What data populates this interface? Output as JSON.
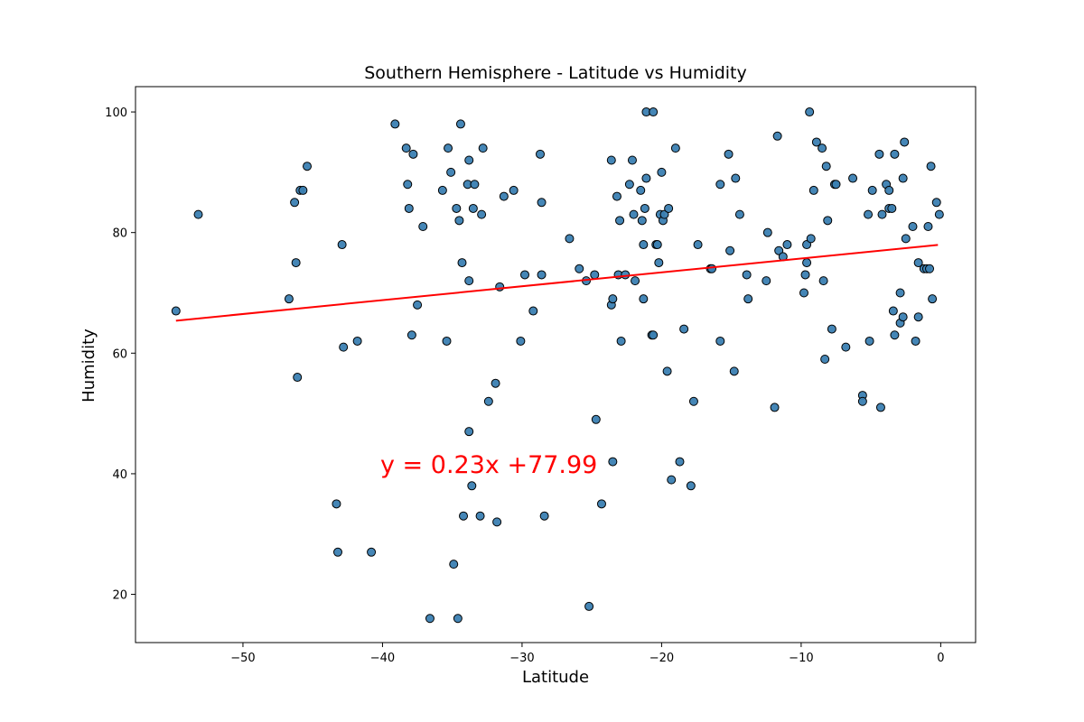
{
  "chart_data": {
    "type": "scatter",
    "title": "Southern Hemisphere - Latitude vs Humidity",
    "xlabel": "Latitude",
    "ylabel": "Humidity",
    "xlim": [
      -57.7,
      2.5
    ],
    "ylim": [
      12.0,
      104.2
    ],
    "xticks": [
      -50,
      -40,
      -30,
      -20,
      -10,
      0
    ],
    "yticks": [
      20,
      40,
      60,
      80,
      100
    ],
    "grid": false,
    "annotation": "y = 0.23x +77.99",
    "regression": {
      "slope": 0.23,
      "intercept": 77.99,
      "x_start": -54.8,
      "x_end": -0.2
    },
    "colors": {
      "points": "#3b7fb2",
      "point_edge": "#000000",
      "line": "#ff0000",
      "annotation": "#ff0000"
    },
    "series": [
      {
        "points": [
          [
            -54.8,
            67
          ],
          [
            -53.2,
            83
          ],
          [
            -46.7,
            69
          ],
          [
            -46.3,
            85
          ],
          [
            -46.2,
            75
          ],
          [
            -46.1,
            56
          ],
          [
            -45.9,
            87
          ],
          [
            -45.7,
            87
          ],
          [
            -45.4,
            91
          ],
          [
            -43.3,
            35
          ],
          [
            -43.2,
            27
          ],
          [
            -42.9,
            78
          ],
          [
            -42.8,
            61
          ],
          [
            -41.8,
            62
          ],
          [
            -40.8,
            27
          ],
          [
            -39.1,
            98
          ],
          [
            -38.3,
            94
          ],
          [
            -38.2,
            88
          ],
          [
            -38.1,
            84
          ],
          [
            -37.9,
            63
          ],
          [
            -37.8,
            93
          ],
          [
            -37.5,
            68
          ],
          [
            -37.1,
            81
          ],
          [
            -36.6,
            16
          ],
          [
            -35.7,
            87
          ],
          [
            -35.4,
            62
          ],
          [
            -35.3,
            94
          ],
          [
            -35.1,
            90
          ],
          [
            -34.9,
            25
          ],
          [
            -34.7,
            84
          ],
          [
            -34.6,
            16
          ],
          [
            -34.5,
            82
          ],
          [
            -34.4,
            98
          ],
          [
            -34.3,
            75
          ],
          [
            -34.2,
            33
          ],
          [
            -33.9,
            88
          ],
          [
            -33.8,
            92
          ],
          [
            -33.8,
            72
          ],
          [
            -33.8,
            47
          ],
          [
            -33.6,
            38
          ],
          [
            -33.5,
            84
          ],
          [
            -33.4,
            88
          ],
          [
            -33.0,
            33
          ],
          [
            -32.9,
            83
          ],
          [
            -32.8,
            94
          ],
          [
            -32.4,
            52
          ],
          [
            -31.9,
            55
          ],
          [
            -31.8,
            32
          ],
          [
            -31.6,
            71
          ],
          [
            -31.3,
            86
          ],
          [
            -30.6,
            87
          ],
          [
            -30.1,
            62
          ],
          [
            -29.8,
            73
          ],
          [
            -29.2,
            67
          ],
          [
            -28.7,
            93
          ],
          [
            -28.6,
            85
          ],
          [
            -28.6,
            73
          ],
          [
            -28.4,
            33
          ],
          [
            -26.6,
            79
          ],
          [
            -25.9,
            74
          ],
          [
            -25.4,
            72
          ],
          [
            -25.2,
            18
          ],
          [
            -24.8,
            73
          ],
          [
            -24.7,
            49
          ],
          [
            -24.3,
            35
          ],
          [
            -23.6,
            92
          ],
          [
            -23.6,
            68
          ],
          [
            -23.5,
            69
          ],
          [
            -23.5,
            42
          ],
          [
            -23.2,
            86
          ],
          [
            -23.1,
            73
          ],
          [
            -23.0,
            82
          ],
          [
            -22.9,
            62
          ],
          [
            -22.6,
            73
          ],
          [
            -22.3,
            88
          ],
          [
            -22.1,
            92
          ],
          [
            -22.0,
            83
          ],
          [
            -21.9,
            72
          ],
          [
            -21.5,
            87
          ],
          [
            -21.4,
            82
          ],
          [
            -21.3,
            69
          ],
          [
            -21.3,
            78
          ],
          [
            -21.2,
            84
          ],
          [
            -21.1,
            100
          ],
          [
            -21.1,
            89
          ],
          [
            -20.7,
            63
          ],
          [
            -20.6,
            63
          ],
          [
            -20.6,
            100
          ],
          [
            -20.4,
            78
          ],
          [
            -20.3,
            78
          ],
          [
            -20.2,
            75
          ],
          [
            -20.1,
            83
          ],
          [
            -20.0,
            90
          ],
          [
            -19.9,
            82
          ],
          [
            -19.8,
            83
          ],
          [
            -19.6,
            57
          ],
          [
            -19.5,
            84
          ],
          [
            -19.3,
            39
          ],
          [
            -19.0,
            94
          ],
          [
            -18.7,
            42
          ],
          [
            -18.4,
            64
          ],
          [
            -17.9,
            38
          ],
          [
            -17.7,
            52
          ],
          [
            -17.4,
            78
          ],
          [
            -16.5,
            74
          ],
          [
            -16.4,
            74
          ],
          [
            -15.8,
            88
          ],
          [
            -15.8,
            62
          ],
          [
            -15.2,
            93
          ],
          [
            -15.1,
            77
          ],
          [
            -14.8,
            57
          ],
          [
            -14.7,
            89
          ],
          [
            -14.4,
            83
          ],
          [
            -13.9,
            73
          ],
          [
            -13.8,
            69
          ],
          [
            -12.5,
            72
          ],
          [
            -12.4,
            80
          ],
          [
            -11.9,
            51
          ],
          [
            -11.7,
            96
          ],
          [
            -11.6,
            77
          ],
          [
            -11.3,
            76
          ],
          [
            -11.0,
            78
          ],
          [
            -9.8,
            70
          ],
          [
            -9.7,
            73
          ],
          [
            -9.6,
            78
          ],
          [
            -9.6,
            75
          ],
          [
            -9.4,
            100
          ],
          [
            -9.3,
            79
          ],
          [
            -9.1,
            87
          ],
          [
            -8.9,
            95
          ],
          [
            -8.5,
            94
          ],
          [
            -8.4,
            72
          ],
          [
            -8.3,
            59
          ],
          [
            -8.2,
            91
          ],
          [
            -8.1,
            82
          ],
          [
            -7.8,
            64
          ],
          [
            -7.6,
            88
          ],
          [
            -7.5,
            88
          ],
          [
            -6.8,
            61
          ],
          [
            -6.3,
            89
          ],
          [
            -5.6,
            53
          ],
          [
            -5.6,
            52
          ],
          [
            -5.2,
            83
          ],
          [
            -5.1,
            62
          ],
          [
            -4.9,
            87
          ],
          [
            -4.4,
            93
          ],
          [
            -4.3,
            51
          ],
          [
            -4.2,
            83
          ],
          [
            -3.9,
            88
          ],
          [
            -3.7,
            84
          ],
          [
            -3.7,
            87
          ],
          [
            -3.5,
            84
          ],
          [
            -3.4,
            67
          ],
          [
            -3.3,
            63
          ],
          [
            -3.3,
            93
          ],
          [
            -2.9,
            65
          ],
          [
            -2.9,
            70
          ],
          [
            -2.7,
            66
          ],
          [
            -2.7,
            89
          ],
          [
            -2.6,
            95
          ],
          [
            -2.5,
            79
          ],
          [
            -2.0,
            81
          ],
          [
            -1.8,
            62
          ],
          [
            -1.6,
            66
          ],
          [
            -1.6,
            75
          ],
          [
            -1.2,
            74
          ],
          [
            -1.0,
            74
          ],
          [
            -0.9,
            81
          ],
          [
            -0.8,
            74
          ],
          [
            -0.7,
            91
          ],
          [
            -0.6,
            69
          ],
          [
            -0.3,
            85
          ],
          [
            -0.1,
            83
          ]
        ]
      }
    ]
  }
}
